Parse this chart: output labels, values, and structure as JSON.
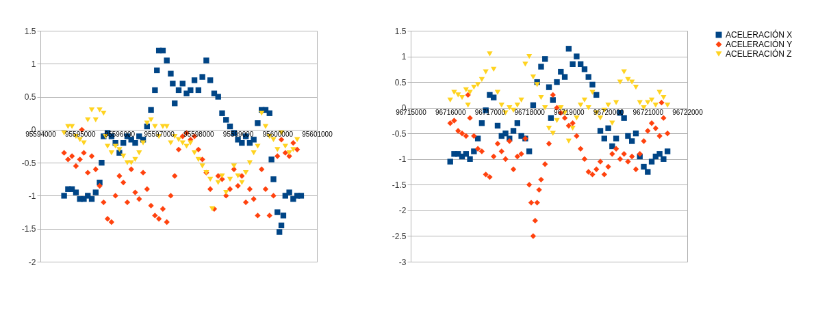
{
  "chart_data": [
    {
      "type": "scatter",
      "xlim": [
        95594000,
        95601000
      ],
      "xticks": [
        95594000,
        95595000,
        95596000,
        95597000,
        95598000,
        95599000,
        95600000,
        95601000
      ],
      "ylim": [
        -2,
        1.5
      ],
      "yticks": [
        -2,
        -1.5,
        -1,
        -0.5,
        0,
        0.5,
        1,
        1.5
      ],
      "grid": "y",
      "legend": false,
      "series": [
        {
          "color": "#004586",
          "marker": "square",
          "x": [
            95594600,
            95594700,
            95594800,
            95594900,
            95595000,
            95595100,
            95595200,
            95595300,
            95595400,
            95595500,
            95595550,
            95595600,
            95595700,
            95595800,
            95595900,
            95596000,
            95596100,
            95596200,
            95596300,
            95596400,
            95596500,
            95596600,
            95596700,
            95596800,
            95596900,
            95596950,
            95597000,
            95597100,
            95597200,
            95597300,
            95597350,
            95597400,
            95597500,
            95597600,
            95597700,
            95597800,
            95597900,
            95598000,
            95598100,
            95598200,
            95598300,
            95598400,
            95598500,
            95598600,
            95598700,
            95598800,
            95598900,
            95599000,
            95599100,
            95599200,
            95599300,
            95599400,
            95599500,
            95599600,
            95599700,
            95599800,
            95599850,
            95599900,
            95600000,
            95600050,
            95600100,
            95600150,
            95600200,
            95600300,
            95600400,
            95600500,
            95600600
          ],
          "values": [
            -1.0,
            -0.9,
            -0.9,
            -0.95,
            -1.05,
            -1.05,
            -1.0,
            -1.05,
            -0.95,
            -0.8,
            -0.5,
            -0.1,
            -0.05,
            -0.1,
            -0.2,
            -0.35,
            -0.2,
            -0.1,
            -0.15,
            -0.2,
            -0.1,
            -0.15,
            0.05,
            0.3,
            0.6,
            0.9,
            1.2,
            1.2,
            1.05,
            0.85,
            0.7,
            0.4,
            0.6,
            0.7,
            0.55,
            0.6,
            0.75,
            0.6,
            0.8,
            1.05,
            0.75,
            0.55,
            0.5,
            0.25,
            0.15,
            0.05,
            -0.05,
            -0.15,
            -0.2,
            -0.1,
            -0.2,
            -0.15,
            0.1,
            0.3,
            0.3,
            0.25,
            -0.45,
            -0.75,
            -1.25,
            -1.55,
            -1.45,
            -1.3,
            -1.0,
            -0.95,
            -1.05,
            -1.0,
            -1.0
          ]
        },
        {
          "color": "#ff420e",
          "marker": "diamond",
          "x": [
            95594600,
            95594700,
            95594800,
            95594900,
            95595000,
            95595050,
            95595100,
            95595200,
            95595300,
            95595400,
            95595500,
            95595600,
            95595700,
            95595800,
            95595900,
            95596000,
            95596100,
            95596200,
            95596300,
            95596400,
            95596500,
            95596600,
            95596700,
            95596800,
            95596900,
            95597000,
            95597100,
            95597200,
            95597300,
            95597400,
            95597500,
            95597600,
            95597700,
            95597800,
            95597900,
            95598000,
            95598100,
            95598200,
            95598300,
            95598400,
            95598500,
            95598600,
            95598700,
            95598800,
            95598900,
            95599000,
            95599100,
            95599200,
            95599300,
            95599400,
            95599500,
            95599600,
            95599700,
            95599800,
            95599900,
            95600000,
            95600100,
            95600200,
            95600300,
            95600400,
            95600500
          ],
          "values": [
            -0.35,
            -0.45,
            -0.4,
            -0.55,
            -0.45,
            0.0,
            -0.35,
            -0.65,
            -0.4,
            -0.6,
            -0.85,
            -1.1,
            -1.35,
            -1.4,
            -1.0,
            -0.7,
            -0.8,
            -1.1,
            -0.6,
            -0.95,
            -1.05,
            -0.65,
            -0.9,
            -1.15,
            -1.3,
            -1.35,
            -1.2,
            -1.4,
            -1.0,
            -0.7,
            -0.3,
            -0.1,
            -0.05,
            -0.15,
            -0.1,
            -0.3,
            -0.45,
            -0.65,
            -0.9,
            -1.2,
            -0.7,
            -0.75,
            -1.0,
            -0.9,
            -0.6,
            -0.85,
            -0.7,
            -1.1,
            -0.9,
            -1.05,
            -1.3,
            -0.6,
            -0.9,
            -1.3,
            -1.0,
            -0.4,
            -0.15,
            -0.35,
            -0.4,
            -0.2,
            -0.3
          ]
        },
        {
          "color": "#ffd320",
          "marker": "triangle",
          "x": [
            95594600,
            95594700,
            95594800,
            95594900,
            95595000,
            95595100,
            95595200,
            95595300,
            95595400,
            95595500,
            95595600,
            95595650,
            95595700,
            95595800,
            95595900,
            95596000,
            95596100,
            95596200,
            95596300,
            95596400,
            95596500,
            95596600,
            95596700,
            95596800,
            95596900,
            95597000,
            95597100,
            95597200,
            95597300,
            95597400,
            95597500,
            95597600,
            95597700,
            95597800,
            95597900,
            95598000,
            95598100,
            95598200,
            95598300,
            95598350,
            95598500,
            95598600,
            95598700,
            95598800,
            95598900,
            95599000,
            95599100,
            95599200,
            95599300,
            95599400,
            95599500,
            95599600,
            95599700,
            95599800,
            95599900,
            95600000,
            95600100,
            95600200,
            95600300,
            95600400,
            95600500
          ],
          "values": [
            -0.05,
            0.05,
            0.05,
            -0.1,
            -0.15,
            -0.2,
            0.15,
            0.3,
            0.15,
            0.3,
            0.25,
            -0.1,
            -0.25,
            -0.35,
            -0.25,
            -0.3,
            -0.4,
            -0.5,
            -0.5,
            -0.45,
            -0.35,
            -0.2,
            0.1,
            0.15,
            0.05,
            -0.1,
            0.05,
            0.05,
            -0.2,
            -0.1,
            -0.15,
            -0.2,
            -0.25,
            -0.2,
            -0.35,
            -0.45,
            -0.55,
            -0.65,
            -0.75,
            -1.2,
            -0.8,
            -0.7,
            -0.95,
            -0.75,
            -0.55,
            -0.7,
            -0.8,
            -0.65,
            -0.5,
            -0.35,
            -0.25,
            0.25,
            0.05,
            -0.1,
            -0.15,
            -0.3,
            -0.05,
            -0.25,
            -0.35,
            -0.3,
            -0.15
          ]
        }
      ]
    },
    {
      "type": "scatter",
      "xlim": [
        96715000,
        96722000
      ],
      "xticks": [
        96715000,
        96716000,
        96717000,
        96718000,
        96719000,
        96720000,
        96721000,
        96722000
      ],
      "ylim": [
        -3,
        1.5
      ],
      "yticks": [
        -3,
        -2.5,
        -2,
        -1.5,
        -1,
        -0.5,
        0,
        0.5,
        1,
        1.5
      ],
      "grid": "y",
      "legend": "right",
      "series": [
        {
          "name": "ACELERACIÓN X",
          "color": "#004586",
          "marker": "square",
          "x": [
            96716000,
            96716100,
            96716200,
            96716300,
            96716400,
            96716500,
            96716600,
            96716700,
            96716800,
            96716900,
            96717000,
            96717100,
            96717200,
            96717300,
            96717400,
            96717500,
            96717600,
            96717700,
            96717800,
            96717900,
            96718000,
            96718100,
            96718200,
            96718300,
            96718400,
            96718500,
            96718550,
            96718600,
            96718700,
            96718800,
            96718900,
            96719000,
            96719100,
            96719200,
            96719300,
            96719400,
            96719500,
            96719600,
            96719700,
            96719800,
            96719900,
            96720000,
            96720100,
            96720200,
            96720300,
            96720400,
            96720500,
            96720600,
            96720700,
            96720800,
            96720900,
            96721000,
            96721100,
            96721200,
            96721300,
            96721400,
            96721500
          ],
          "values": [
            -1.05,
            -0.9,
            -0.9,
            -0.95,
            -0.9,
            -1.0,
            -0.85,
            -0.6,
            -0.3,
            -0.05,
            0.25,
            0.2,
            -0.35,
            -0.55,
            -0.5,
            -0.6,
            -0.45,
            -0.3,
            -0.55,
            -0.6,
            -0.85,
            0.05,
            0.5,
            0.8,
            0.95,
            0.4,
            -0.2,
            0.15,
            0.5,
            0.7,
            0.6,
            1.15,
            0.85,
            1.0,
            0.85,
            0.75,
            0.6,
            0.45,
            0.25,
            -0.45,
            -0.6,
            -0.4,
            -0.75,
            -0.6,
            -0.1,
            -0.2,
            -0.55,
            -0.65,
            -0.5,
            -0.95,
            -1.15,
            -1.25,
            -1.05,
            -0.95,
            -0.9,
            -1.0,
            -0.85
          ]
        },
        {
          "name": "ACELERACIÓN Y",
          "color": "#ff420e",
          "marker": "diamond",
          "x": [
            96716000,
            96716100,
            96716200,
            96716300,
            96716400,
            96716450,
            96716500,
            96716600,
            96716700,
            96716800,
            96716900,
            96717000,
            96717100,
            96717200,
            96717300,
            96717400,
            96717500,
            96717600,
            96717700,
            96717800,
            96717900,
            96718000,
            96718050,
            96718100,
            96718150,
            96718200,
            96718250,
            96718300,
            96718400,
            96718500,
            96718600,
            96718700,
            96718800,
            96718900,
            96719000,
            96719100,
            96719200,
            96719300,
            96719400,
            96719500,
            96719600,
            96719700,
            96719800,
            96719900,
            96720000,
            96720100,
            96720200,
            96720300,
            96720400,
            96720500,
            96720600,
            96720700,
            96720800,
            96720900,
            96721000,
            96721100,
            96721200,
            96721300,
            96721350,
            96721400,
            96721500
          ],
          "values": [
            -0.3,
            -0.25,
            -0.45,
            -0.5,
            -0.55,
            0.25,
            -0.2,
            -0.55,
            -0.8,
            -0.85,
            -1.3,
            -1.35,
            -0.95,
            -0.7,
            -0.85,
            -1.0,
            -0.65,
            -1.2,
            -0.95,
            -0.9,
            -0.6,
            -1.5,
            -1.85,
            -2.5,
            -2.2,
            -1.85,
            -1.6,
            -1.4,
            -1.1,
            -0.7,
            0.25,
            0.0,
            -0.1,
            -0.2,
            -0.35,
            -0.3,
            -0.55,
            -0.8,
            -1.0,
            -1.25,
            -1.3,
            -1.2,
            -1.05,
            -1.3,
            -1.15,
            -0.9,
            -0.8,
            -1.0,
            -0.9,
            -1.05,
            -0.95,
            -1.2,
            -0.9,
            -0.65,
            -0.45,
            -0.3,
            -0.4,
            -0.55,
            0.1,
            -0.2,
            -0.5
          ]
        },
        {
          "name": "ACELERACIÓN Z",
          "color": "#ffd320",
          "marker": "triangle",
          "x": [
            96716000,
            96716100,
            96716200,
            96716300,
            96716400,
            96716450,
            96716500,
            96716600,
            96716700,
            96716800,
            96716900,
            96717000,
            96717100,
            96717200,
            96717300,
            96717400,
            96717500,
            96717600,
            96717700,
            96717800,
            96717900,
            96718000,
            96718100,
            96718200,
            96718300,
            96718400,
            96718500,
            96718600,
            96718700,
            96718800,
            96718900,
            96719000,
            96719100,
            96719200,
            96719300,
            96719400,
            96719500,
            96719600,
            96719700,
            96719800,
            96719900,
            96720000,
            96720100,
            96720200,
            96720300,
            96720400,
            96720500,
            96720600,
            96720700,
            96720800,
            96720900,
            96721000,
            96721100,
            96721200,
            96721300,
            96721400,
            96721500
          ],
          "values": [
            0.15,
            0.3,
            0.25,
            0.2,
            0.35,
            0.05,
            0.3,
            0.4,
            0.45,
            0.55,
            0.7,
            1.05,
            0.75,
            0.3,
            0.05,
            -0.1,
            0.0,
            -0.05,
            0.05,
            0.15,
            0.85,
            1.0,
            0.6,
            0.45,
            0.2,
            0.0,
            -0.4,
            -0.5,
            -0.25,
            0.0,
            -0.1,
            -0.65,
            -0.4,
            -0.2,
            0.05,
            0.15,
            0.0,
            0.3,
            -0.1,
            -0.2,
            -0.05,
            0.05,
            -0.3,
            0.1,
            0.5,
            0.7,
            0.55,
            0.5,
            0.4,
            0.1,
            0.0,
            0.1,
            0.15,
            0.05,
            0.3,
            0.2,
            0.05
          ]
        }
      ]
    }
  ]
}
